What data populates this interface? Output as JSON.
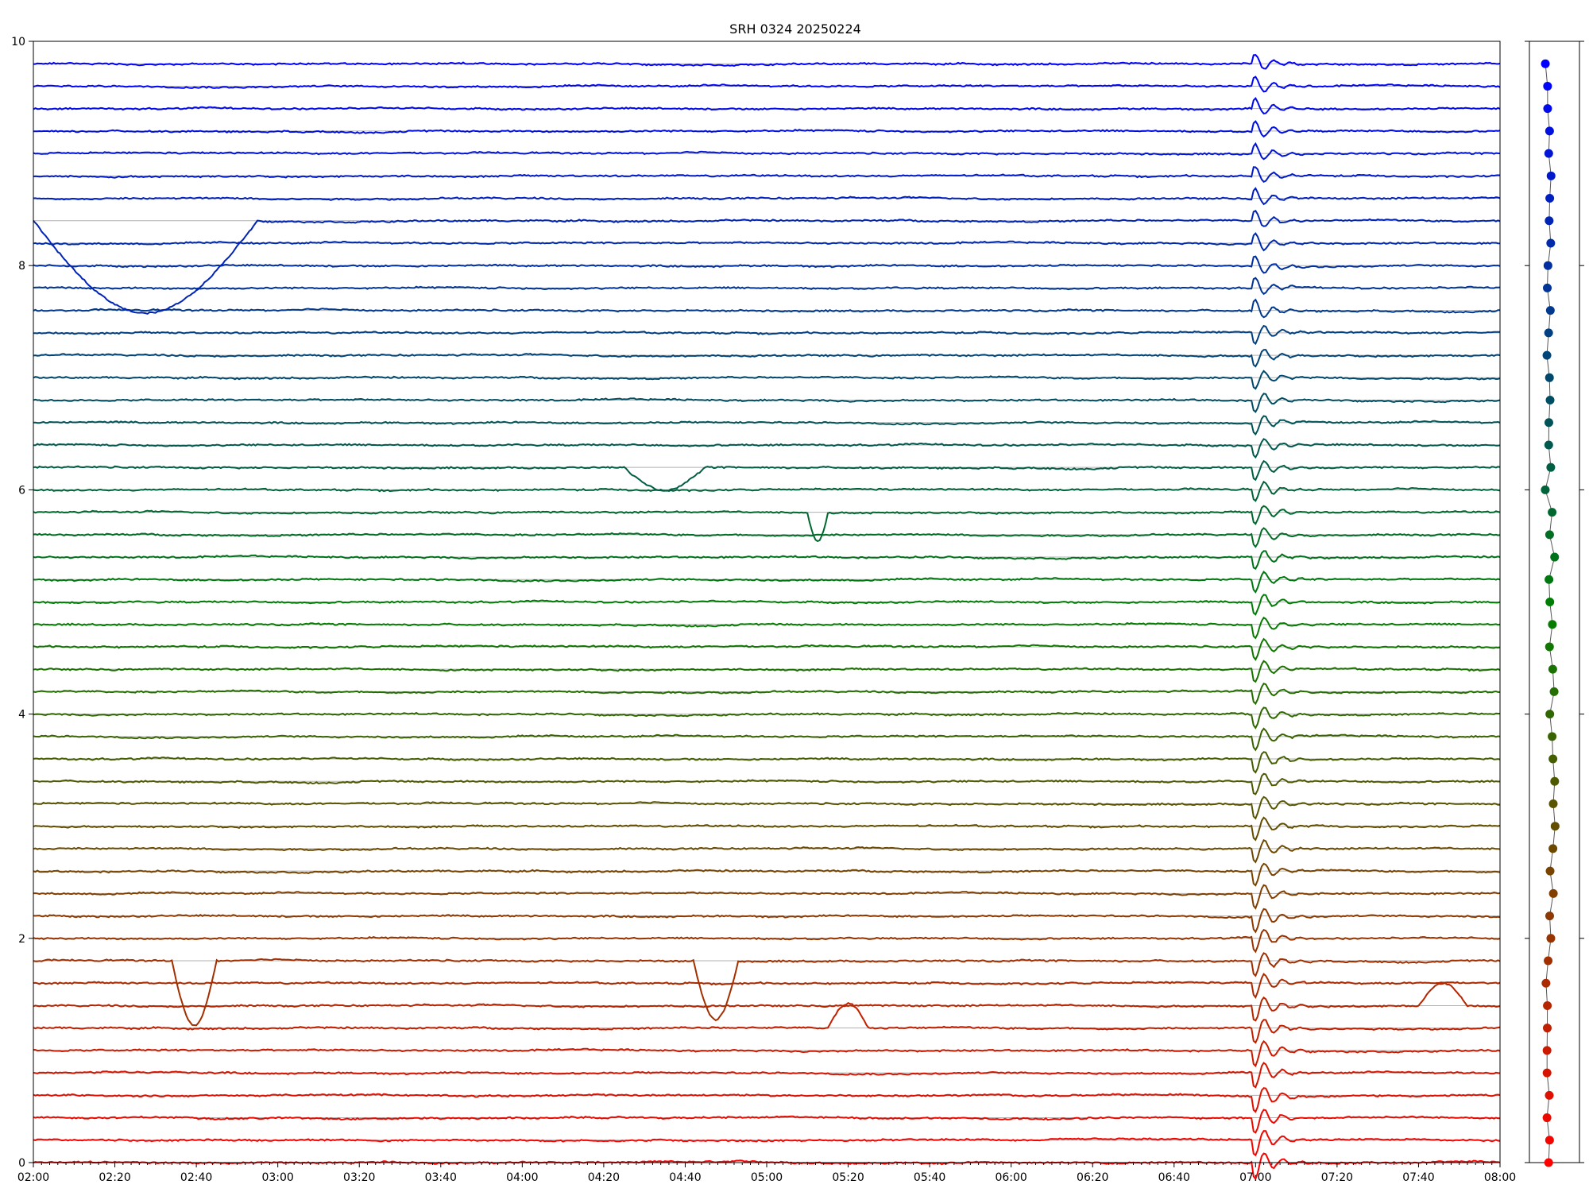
{
  "chart_data": [
    {
      "type": "line",
      "title": "SRH 0324 20250224",
      "xlabel": "",
      "ylabel": "",
      "x_range": [
        "02:00",
        "08:00"
      ],
      "ylim": [
        0,
        10
      ],
      "yticks": [
        0,
        2,
        4,
        6,
        8,
        10
      ],
      "xticks": [
        "02:00",
        "02:20",
        "02:40",
        "03:00",
        "03:20",
        "03:40",
        "04:00",
        "04:20",
        "04:40",
        "05:00",
        "05:20",
        "05:40",
        "06:00",
        "06:20",
        "06:40",
        "07:00",
        "07:20",
        "07:40",
        "08:00"
      ],
      "grid": "horizontal lines at each trace baseline",
      "legend": "none",
      "n_traces": 50,
      "trace_spacing": 0.2,
      "color_gradient": {
        "bottom": "#ff0000",
        "middle": "#008000",
        "top": "#0000ff"
      },
      "common_event": {
        "time": "07:00",
        "description": "simultaneous disturbance on all traces"
      },
      "notable_disturbances": [
        {
          "trace_baseline": 8.4,
          "start": "02:00",
          "end": "02:55",
          "min": 7.58
        },
        {
          "trace_baseline": 1.8,
          "start": "02:34",
          "end": "02:45",
          "min": 1.22
        },
        {
          "trace_baseline": 1.8,
          "start": "04:42",
          "end": "04:53",
          "min": 1.28
        },
        {
          "trace_baseline": 1.2,
          "start": "05:15",
          "end": "05:25",
          "max": 1.42
        },
        {
          "trace_baseline": 6.2,
          "start": "04:25",
          "end": "04:45",
          "min": 6.0
        },
        {
          "trace_baseline": 5.8,
          "start": "05:10",
          "end": "05:15",
          "min": 5.55
        },
        {
          "trace_baseline": 1.4,
          "start": "07:40",
          "end": "07:52",
          "max": 1.6
        }
      ]
    },
    {
      "type": "scatter",
      "title": "",
      "description": "side panel: one marker per trace, colored like the trace",
      "n_points": 50
    }
  ]
}
